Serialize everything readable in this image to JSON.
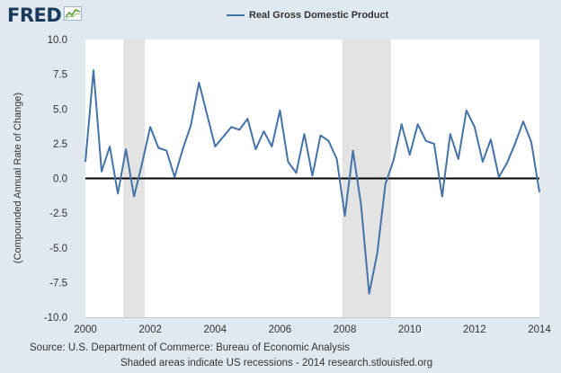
{
  "header": {
    "logo_text": "FRED",
    "logo_icon": "line-chart-icon"
  },
  "footer": {
    "source": "Source: U.S. Department of Commerce: Bureau of Economic Analysis",
    "note": "Shaded areas indicate US recessions - 2014 research.stlouisfed.org"
  },
  "colors": {
    "series": "#4572a7",
    "recession": "#e3e3e3",
    "plot_bg": "#ffffff",
    "page_bg": "#e1e9f0"
  },
  "chart_data": {
    "type": "line",
    "title": "",
    "ylabel": "(Compounded Annual Rate of Change)",
    "xlabel": "",
    "xlim": [
      2000,
      2014
    ],
    "ylim": [
      -10,
      10
    ],
    "x_ticks": [
      "2000",
      "2002",
      "2004",
      "2006",
      "2008",
      "2010",
      "2012",
      "2014"
    ],
    "y_ticks": [
      "10.0",
      "7.5",
      "5.0",
      "2.5",
      "0.0",
      "-2.5",
      "-5.0",
      "-7.5",
      "-10.0"
    ],
    "grid": false,
    "legend": "top-center",
    "recessions": [
      [
        2001.17,
        2001.83
      ],
      [
        2007.92,
        2009.42
      ]
    ],
    "series": [
      {
        "name": "Real Gross Domestic Product",
        "x": [
          2000.0,
          2000.25,
          2000.5,
          2000.75,
          2001.0,
          2001.25,
          2001.5,
          2001.75,
          2002.0,
          2002.25,
          2002.5,
          2002.75,
          2003.0,
          2003.25,
          2003.5,
          2003.75,
          2004.0,
          2004.25,
          2004.5,
          2004.75,
          2005.0,
          2005.25,
          2005.5,
          2005.75,
          2006.0,
          2006.25,
          2006.5,
          2006.75,
          2007.0,
          2007.25,
          2007.5,
          2007.75,
          2008.0,
          2008.25,
          2008.5,
          2008.75,
          2009.0,
          2009.25,
          2009.5,
          2009.75,
          2010.0,
          2010.25,
          2010.5,
          2010.75,
          2011.0,
          2011.25,
          2011.5,
          2011.75,
          2012.0,
          2012.25,
          2012.5,
          2012.75,
          2013.0,
          2013.25,
          2013.5,
          2013.75,
          2014.0
        ],
        "values": [
          1.2,
          7.8,
          0.5,
          2.3,
          -1.1,
          2.1,
          -1.3,
          1.1,
          3.7,
          2.2,
          2.0,
          0.1,
          2.1,
          3.8,
          6.9,
          4.6,
          2.3,
          3.0,
          3.7,
          3.5,
          4.3,
          2.1,
          3.4,
          2.3,
          4.9,
          1.2,
          0.4,
          3.2,
          0.2,
          3.1,
          2.7,
          1.4,
          -2.7,
          2.0,
          -1.9,
          -8.3,
          -5.4,
          -0.4,
          1.3,
          3.9,
          1.7,
          3.9,
          2.7,
          2.5,
          -1.3,
          3.2,
          1.4,
          4.9,
          3.7,
          1.2,
          2.8,
          0.1,
          1.1,
          2.5,
          4.1,
          2.6,
          -1.0
        ]
      }
    ]
  }
}
